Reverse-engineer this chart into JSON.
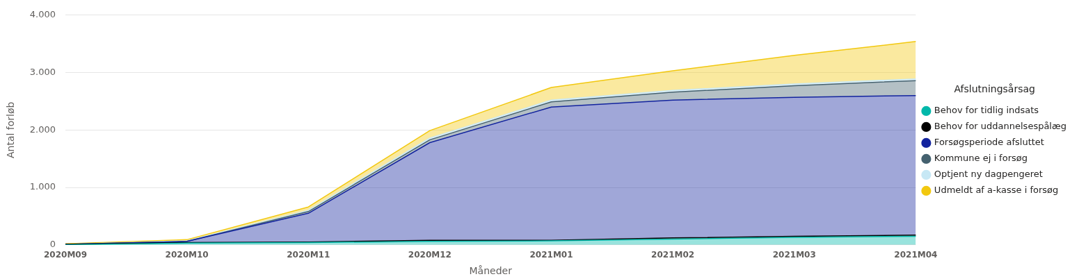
{
  "chart_data": {
    "type": "area",
    "stacked": true,
    "xlabel": "Måneder",
    "ylabel": "Antal forløb",
    "legend_title": "Afslutningsårsag",
    "legend": "right",
    "grid": "y",
    "marker": "none",
    "categories": [
      "2020M09",
      "2020M10",
      "2020M11",
      "2020M12",
      "2021M01",
      "2021M02",
      "2021M03",
      "2021M04"
    ],
    "ylim": [
      0,
      4000
    ],
    "yticks": [
      {
        "value": 0,
        "label": "0"
      },
      {
        "value": 1000,
        "label": "1.000"
      },
      {
        "value": 2000,
        "label": "2.000"
      },
      {
        "value": 3000,
        "label": "3.000"
      },
      {
        "value": 4000,
        "label": "4.000"
      }
    ],
    "series": [
      {
        "name": "Behov for tidlig indsats",
        "color": "#01b8aa",
        "values": [
          0,
          30,
          40,
          60,
          70,
          100,
          130,
          150
        ]
      },
      {
        "name": "Behov for uddannelsespålæg",
        "color": "#000000",
        "values": [
          10,
          10,
          10,
          20,
          10,
          20,
          20,
          20
        ]
      },
      {
        "name": "Forsøgsperiode afsluttet",
        "color": "#12239e",
        "values": [
          0,
          20,
          500,
          1700,
          2320,
          2400,
          2420,
          2430
        ]
      },
      {
        "name": "Kommune ej i forsøg",
        "color": "#44616f",
        "values": [
          0,
          0,
          30,
          50,
          90,
          140,
          200,
          260
        ]
      },
      {
        "name": "Optjent ny dagpengeret",
        "color": "#c7e8f5",
        "values": [
          0,
          10,
          20,
          30,
          30,
          30,
          30,
          30
        ]
      },
      {
        "name": "Udmeldt af a-kasse i forsøg",
        "color": "#f2c80f",
        "values": [
          10,
          20,
          60,
          130,
          220,
          340,
          500,
          650
        ]
      }
    ]
  }
}
